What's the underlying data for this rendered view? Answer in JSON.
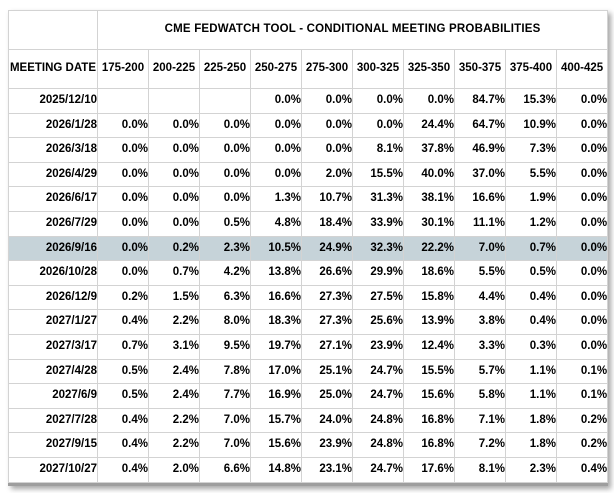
{
  "table": {
    "title": "CME FEDWATCH TOOL - CONDITIONAL MEETING PROBABILITIES",
    "meeting_date_header": "MEETING DATE",
    "rate_columns": [
      "175-200",
      "200-225",
      "225-250",
      "250-275",
      "275-300",
      "300-325",
      "325-350",
      "350-375",
      "375-400",
      "400-425"
    ],
    "colors": {
      "max_prob_cell": "#c5f0f6",
      "right_tail_cell": "#f5f4d6",
      "selected_row": "#c6d3d9",
      "cell_border": "#d3d3d3",
      "table_bottom_border": "#9e9e9e"
    },
    "rows": [
      {
        "date": "2025/12/10",
        "values": [
          "",
          "",
          "",
          "0.0%",
          "0.0%",
          "0.0%",
          "0.0%",
          "84.7%",
          "15.3%",
          "0.0%"
        ],
        "blue_col": 7,
        "yellow_cols": [
          8
        ],
        "highlighted": false
      },
      {
        "date": "2026/1/28",
        "values": [
          "0.0%",
          "0.0%",
          "0.0%",
          "0.0%",
          "0.0%",
          "0.0%",
          "24.4%",
          "64.7%",
          "10.9%",
          "0.0%"
        ],
        "blue_col": 7,
        "yellow_cols": [
          8
        ],
        "highlighted": false
      },
      {
        "date": "2026/3/18",
        "values": [
          "0.0%",
          "0.0%",
          "0.0%",
          "0.0%",
          "0.0%",
          "8.1%",
          "37.8%",
          "46.9%",
          "7.3%",
          "0.0%"
        ],
        "blue_col": 7,
        "yellow_cols": [
          8
        ],
        "highlighted": false
      },
      {
        "date": "2026/4/29",
        "values": [
          "0.0%",
          "0.0%",
          "0.0%",
          "0.0%",
          "2.0%",
          "15.5%",
          "40.0%",
          "37.0%",
          "5.5%",
          "0.0%"
        ],
        "blue_col": 6,
        "yellow_cols": [
          7,
          8
        ],
        "highlighted": false
      },
      {
        "date": "2026/6/17",
        "values": [
          "0.0%",
          "0.0%",
          "0.0%",
          "1.3%",
          "10.7%",
          "31.3%",
          "38.1%",
          "16.6%",
          "1.9%",
          "0.0%"
        ],
        "blue_col": 6,
        "yellow_cols": [
          7,
          8
        ],
        "highlighted": false
      },
      {
        "date": "2026/7/29",
        "values": [
          "0.0%",
          "0.0%",
          "0.5%",
          "4.8%",
          "18.4%",
          "33.9%",
          "30.1%",
          "11.1%",
          "1.2%",
          "0.0%"
        ],
        "blue_col": 5,
        "yellow_cols": [
          6,
          7,
          8
        ],
        "highlighted": false
      },
      {
        "date": "2026/9/16",
        "values": [
          "0.0%",
          "0.2%",
          "2.3%",
          "10.5%",
          "24.9%",
          "32.3%",
          "22.2%",
          "7.0%",
          "0.7%",
          "0.0%"
        ],
        "blue_col": null,
        "yellow_cols": [],
        "highlighted": true
      },
      {
        "date": "2026/10/28",
        "values": [
          "0.0%",
          "0.7%",
          "4.2%",
          "13.8%",
          "26.6%",
          "29.9%",
          "18.6%",
          "5.5%",
          "0.5%",
          "0.0%"
        ],
        "blue_col": 5,
        "yellow_cols": [
          6,
          7,
          8
        ],
        "highlighted": false
      },
      {
        "date": "2026/12/9",
        "values": [
          "0.2%",
          "1.5%",
          "6.3%",
          "16.6%",
          "27.3%",
          "27.5%",
          "15.8%",
          "4.4%",
          "0.4%",
          "0.0%"
        ],
        "blue_col": 5,
        "yellow_cols": [
          6,
          7,
          8
        ],
        "highlighted": false
      },
      {
        "date": "2027/1/27",
        "values": [
          "0.4%",
          "2.2%",
          "8.0%",
          "18.3%",
          "27.3%",
          "25.6%",
          "13.9%",
          "3.8%",
          "0.4%",
          "0.0%"
        ],
        "blue_col": 4,
        "yellow_cols": [
          5,
          6,
          7,
          8
        ],
        "highlighted": false
      },
      {
        "date": "2027/3/17",
        "values": [
          "0.7%",
          "3.1%",
          "9.5%",
          "19.7%",
          "27.1%",
          "23.9%",
          "12.4%",
          "3.3%",
          "0.3%",
          "0.0%"
        ],
        "blue_col": 4,
        "yellow_cols": [
          5,
          6,
          7,
          8
        ],
        "highlighted": false
      },
      {
        "date": "2027/4/28",
        "values": [
          "0.5%",
          "2.4%",
          "7.8%",
          "17.0%",
          "25.1%",
          "24.7%",
          "15.5%",
          "5.7%",
          "1.1%",
          "0.1%"
        ],
        "blue_col": 4,
        "yellow_cols": [
          5,
          6,
          7,
          8
        ],
        "highlighted": false
      },
      {
        "date": "2027/6/9",
        "values": [
          "0.5%",
          "2.4%",
          "7.7%",
          "16.9%",
          "25.0%",
          "24.7%",
          "15.6%",
          "5.8%",
          "1.1%",
          "0.1%"
        ],
        "blue_col": 4,
        "yellow_cols": [
          5,
          6,
          7,
          8
        ],
        "highlighted": false
      },
      {
        "date": "2027/7/28",
        "values": [
          "0.4%",
          "2.2%",
          "7.0%",
          "15.7%",
          "24.0%",
          "24.8%",
          "16.8%",
          "7.1%",
          "1.8%",
          "0.2%"
        ],
        "blue_col": 5,
        "yellow_cols": [
          6,
          7,
          8
        ],
        "highlighted": false
      },
      {
        "date": "2027/9/15",
        "values": [
          "0.4%",
          "2.2%",
          "7.0%",
          "15.6%",
          "23.9%",
          "24.8%",
          "16.8%",
          "7.2%",
          "1.8%",
          "0.2%"
        ],
        "blue_col": 5,
        "yellow_cols": [
          6,
          7,
          8
        ],
        "highlighted": false
      },
      {
        "date": "2027/10/27",
        "values": [
          "0.4%",
          "2.0%",
          "6.6%",
          "14.8%",
          "23.1%",
          "24.7%",
          "17.6%",
          "8.1%",
          "2.3%",
          "0.4%"
        ],
        "blue_col": 5,
        "yellow_cols": [
          6,
          7,
          8
        ],
        "highlighted": false
      }
    ]
  }
}
